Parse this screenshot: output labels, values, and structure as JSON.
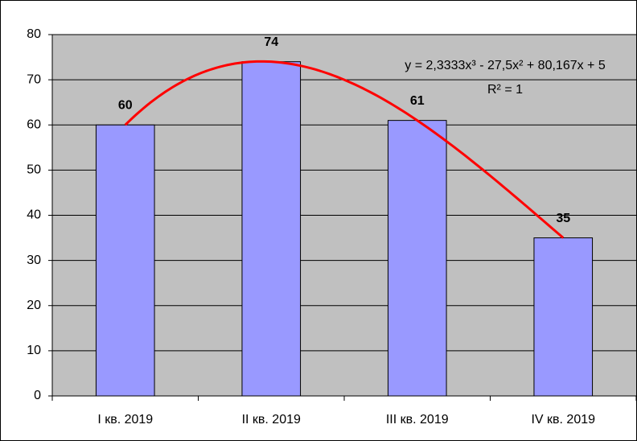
{
  "chart_data": {
    "type": "bar",
    "categories": [
      "I кв. 2019",
      "II кв. 2019",
      "III кв. 2019",
      "IV кв. 2019"
    ],
    "values": [
      60,
      74,
      61,
      35
    ],
    "color": "#9999ff",
    "ylim": [
      0,
      80
    ],
    "yticks": [
      0,
      10,
      20,
      30,
      40,
      50,
      60,
      70,
      80
    ],
    "grid": true,
    "trendline": {
      "kind": "polynomial",
      "color": "#ff0000",
      "equation": "y = 2,3333x³ - 27,5x² + 80,167x + 5",
      "r_squared": "R² = 1"
    }
  }
}
